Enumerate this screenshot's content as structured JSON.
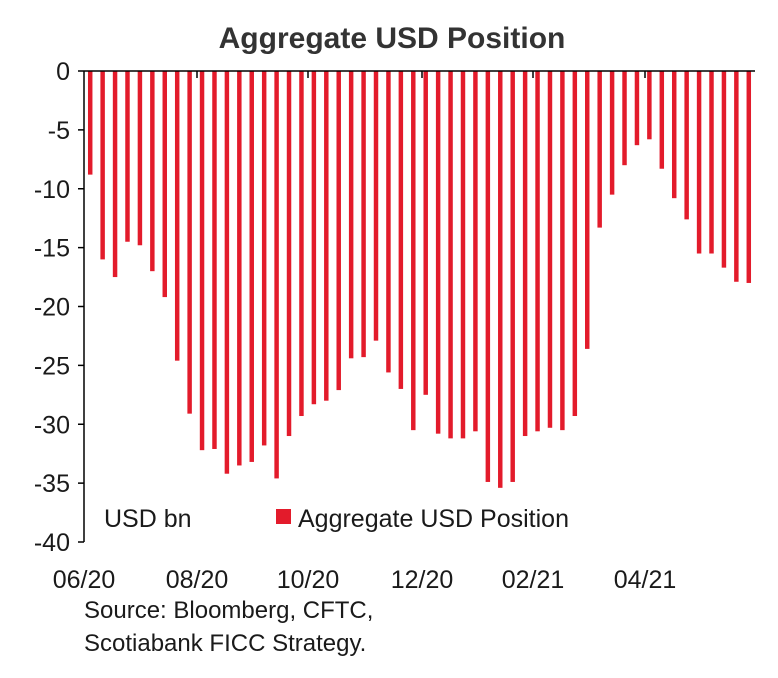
{
  "chart_data": {
    "type": "bar",
    "title": "Aggregate USD Position",
    "unit_label": "USD bn",
    "legend": [
      {
        "name": "Aggregate USD Position",
        "color": "#e31b2b"
      }
    ],
    "series": [
      {
        "name": "Aggregate USD Position",
        "color": "#e31b2b",
        "values": [
          -8.8,
          -16.0,
          -17.5,
          -14.5,
          -14.8,
          -17.0,
          -19.2,
          -24.6,
          -29.1,
          -32.2,
          -32.1,
          -34.2,
          -33.5,
          -33.2,
          -31.8,
          -34.6,
          -31.0,
          -29.3,
          -28.3,
          -28.0,
          -27.1,
          -24.4,
          -24.3,
          -22.9,
          -25.6,
          -27.0,
          -30.5,
          -27.5,
          -30.8,
          -31.2,
          -31.2,
          -30.6,
          -34.9,
          -35.4,
          -34.9,
          -31.0,
          -30.6,
          -30.3,
          -30.5,
          -29.3,
          -23.6,
          -13.3,
          -10.5,
          -8.0,
          -6.3,
          -5.8,
          -8.3,
          -10.8,
          -12.6,
          -15.5,
          -15.5,
          -16.7,
          -17.9,
          -18.0
        ]
      }
    ],
    "x_tick_labels": [
      "06/20",
      "08/20",
      "10/20",
      "12/20",
      "02/21",
      "04/21"
    ],
    "y_ticks": [
      0,
      -5,
      -10,
      -15,
      -20,
      -25,
      -30,
      -35,
      -40
    ],
    "ylim": [
      -40,
      0
    ],
    "grid": false,
    "legend_placement": "bottom"
  },
  "source_lines": [
    "Source: Bloomberg, CFTC,",
    "Scotiabank FICC  Strategy."
  ]
}
